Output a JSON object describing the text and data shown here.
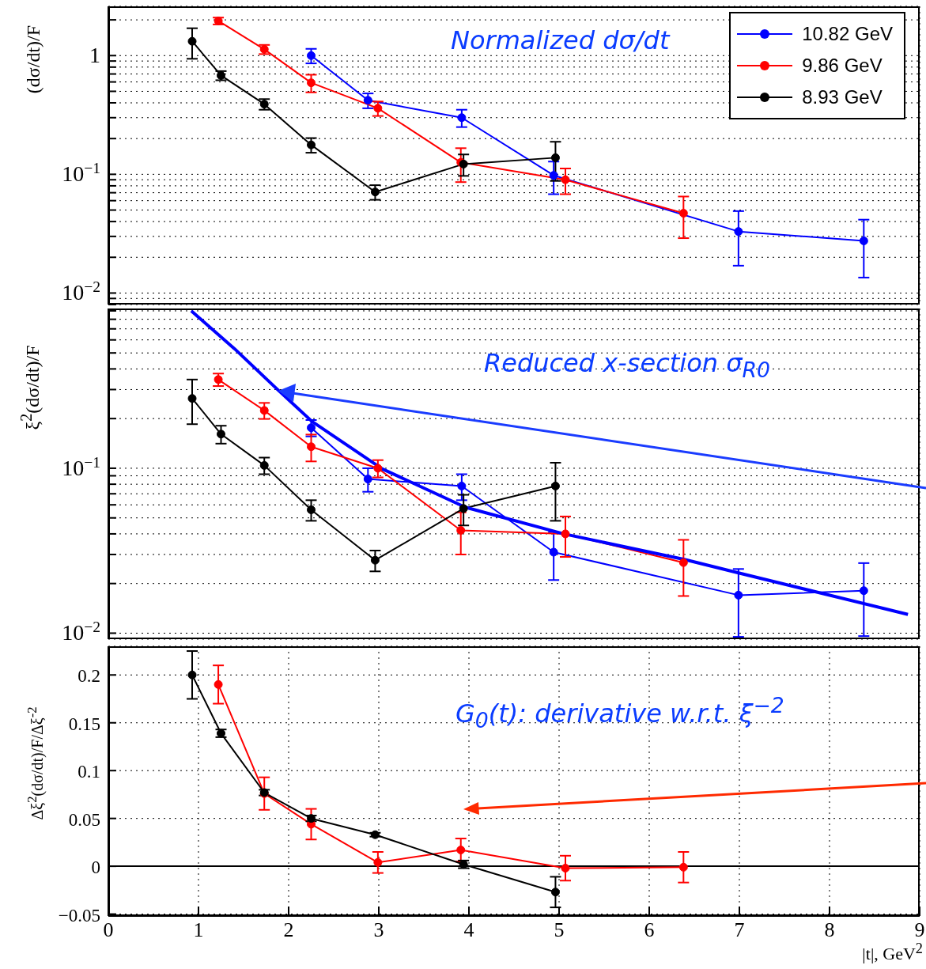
{
  "chart_data": [
    {
      "type": "line",
      "ylabel": "(dσ/dt)/F",
      "annotations": [
        "Normalized dσ/dt"
      ],
      "xlim": [
        0,
        9
      ],
      "xticks": [
        0,
        1,
        2,
        3,
        4,
        5,
        6,
        7,
        8,
        9
      ],
      "ylim": [
        0.008,
        2.6
      ],
      "log": true,
      "grid": true,
      "marker": "circle",
      "tick_labels": "y",
      "legend": "top right",
      "yticks": [
        {
          "value": 0.008,
          "label": null
        },
        {
          "value": 0.009,
          "label": null
        },
        {
          "value": 0.01,
          "label": "10$^{−2}$"
        },
        {
          "value": 0.02,
          "label": null
        },
        {
          "value": 0.03,
          "label": null
        },
        {
          "value": 0.04,
          "label": null
        },
        {
          "value": 0.05,
          "label": null
        },
        {
          "value": 0.06,
          "label": null
        },
        {
          "value": 0.07,
          "label": null
        },
        {
          "value": 0.08,
          "label": null
        },
        {
          "value": 0.09,
          "label": null
        },
        {
          "value": 0.1,
          "label": "10$^{−1}$"
        },
        {
          "value": 0.2,
          "label": null
        },
        {
          "value": 0.3,
          "label": null
        },
        {
          "value": 0.4,
          "label": null
        },
        {
          "value": 0.5,
          "label": null
        },
        {
          "value": 0.6,
          "label": null
        },
        {
          "value": 0.7,
          "label": null
        },
        {
          "value": 0.8,
          "label": null
        },
        {
          "value": 0.9,
          "label": null
        },
        1,
        {
          "value": 2,
          "label": null
        }
      ],
      "series": [
        {
          "name": "10.82 GeV",
          "color": "#0000ff",
          "x": [
            2.25,
            2.88,
            3.92,
            4.94,
            6.99,
            8.38
          ],
          "values": [
            1.0,
            0.42,
            0.3,
            0.098,
            0.033,
            0.0275
          ],
          "errors": [
            0.14,
            0.06,
            0.05,
            0.03,
            0.016,
            0.014
          ]
        },
        {
          "name": "9.86 GeV",
          "color": "#ff0000",
          "x": [
            1.22,
            1.73,
            2.25,
            2.99,
            3.91,
            5.07,
            6.38
          ],
          "values": [
            1.96,
            1.13,
            0.59,
            0.36,
            0.126,
            0.09,
            0.047
          ],
          "errors": [
            0.13,
            0.1,
            0.1,
            0.05,
            0.04,
            0.022,
            0.018
          ]
        },
        {
          "name": "8.93 GeV",
          "color": "#000000",
          "x": [
            0.93,
            1.25,
            1.73,
            2.25,
            2.96,
            3.94,
            4.96
          ],
          "values": [
            1.32,
            0.68,
            0.39,
            0.177,
            0.071,
            0.122,
            0.138
          ],
          "errors": [
            0.38,
            0.06,
            0.04,
            0.025,
            0.01,
            0.025,
            0.05
          ]
        }
      ]
    },
    {
      "type": "line",
      "ylabel": "ξ$^{2}$(dσ/dt)/F",
      "annotations": [
        "Reduced x-section σ$_{R0}$"
      ],
      "xlim": [
        0,
        9
      ],
      "xticks": [
        0,
        1,
        2,
        3,
        4,
        5,
        6,
        7,
        8,
        9
      ],
      "ylim": [
        0.0092,
        0.93
      ],
      "log": true,
      "grid": true,
      "marker": "circle",
      "tick_labels": "y",
      "yticks": [
        {
          "value": 0.01,
          "label": "10$^{−2}$"
        },
        {
          "value": 0.02,
          "label": null
        },
        {
          "value": 0.03,
          "label": null
        },
        {
          "value": 0.04,
          "label": null
        },
        {
          "value": 0.05,
          "label": null
        },
        {
          "value": 0.06,
          "label": null
        },
        {
          "value": 0.07,
          "label": null
        },
        {
          "value": 0.08,
          "label": null
        },
        {
          "value": 0.09,
          "label": null
        },
        {
          "value": 0.1,
          "label": "10$^{−1}$"
        },
        {
          "value": 0.2,
          "label": null
        },
        {
          "value": 0.3,
          "label": null
        },
        {
          "value": 0.4,
          "label": null
        },
        {
          "value": 0.5,
          "label": null
        },
        {
          "value": 0.6,
          "label": null
        },
        {
          "value": 0.7,
          "label": null
        },
        {
          "value": 0.8,
          "label": null
        },
        {
          "value": 0.9,
          "label": null
        }
      ],
      "series": [
        {
          "color": "#0000ff",
          "x": [
            2.25,
            2.88,
            3.92,
            4.94,
            6.99,
            8.38
          ],
          "values": [
            0.176,
            0.086,
            0.078,
            0.031,
            0.017,
            0.0181
          ],
          "errors": [
            0.02,
            0.014,
            0.014,
            0.01,
            0.0075,
            0.0085
          ]
        },
        {
          "color": "#ff0000",
          "x": [
            1.22,
            1.73,
            2.25,
            2.99,
            3.91,
            5.07,
            6.38
          ],
          "values": [
            0.345,
            0.224,
            0.135,
            0.1,
            0.042,
            0.04,
            0.0268
          ],
          "errors": [
            0.03,
            0.025,
            0.025,
            0.012,
            0.012,
            0.011,
            0.01
          ]
        },
        {
          "color": "#000000",
          "x": [
            0.93,
            1.25,
            1.73,
            2.25,
            2.96,
            3.94,
            4.96
          ],
          "values": [
            0.265,
            0.161,
            0.104,
            0.056,
            0.0277,
            0.057,
            0.078
          ],
          "errors": [
            0.08,
            0.02,
            0.012,
            0.008,
            0.004,
            0.012,
            0.03
          ]
        },
        {
          "type": "line",
          "color": "#0000ff",
          "marker": "none",
          "x": [
            0.92,
            1.4,
            1.86,
            2.26,
            3.04,
            3.96,
            5.05,
            6.39,
            6.99,
            8.87
          ],
          "values": [
            0.9,
            0.53,
            0.306,
            0.192,
            0.099,
            0.058,
            0.04,
            0.028,
            0.0232,
            0.013
          ]
        }
      ]
    },
    {
      "type": "line",
      "ylabel": "Δξ$^{2}$(dσ/dt)/F/Δξ$^{-2}$",
      "xlabel": "|t|, GeV$^{2}$",
      "annotations": [
        "G$_{0}$(t): derivative w.r.t. ξ$^{−2}$"
      ],
      "xlim": [
        0,
        9
      ],
      "xticks": [
        0,
        1,
        2,
        3,
        4,
        5,
        6,
        7,
        8,
        9
      ],
      "ylim": [
        -0.052,
        0.23
      ],
      "yticks": [
        {
          "value": -0.05,
          "label": "−0.05"
        },
        0,
        0.05,
        0.1,
        0.15,
        0.2
      ],
      "grid": true,
      "marker": "circle",
      "ref_lines": [
        {
          "axis": "y",
          "value": 0,
          "color": "#000000"
        }
      ],
      "series": [
        {
          "color": "#ff0000",
          "x": [
            1.22,
            1.73,
            2.25,
            2.99,
            3.91,
            5.07,
            6.38
          ],
          "values": [
            0.19,
            0.076,
            0.044,
            0.004,
            0.017,
            -0.002,
            -0.001
          ],
          "errors": [
            0.02,
            0.017,
            0.016,
            0.011,
            0.012,
            0.013,
            0.016
          ]
        },
        {
          "color": "#000000",
          "x": [
            0.93,
            1.25,
            1.73,
            2.25,
            2.96,
            3.94,
            4.96
          ],
          "values": [
            0.2,
            0.139,
            0.077,
            0.05,
            0.033,
            0.002,
            -0.027
          ],
          "errors": [
            0.025,
            0.004,
            0.003,
            0.003,
            0.002,
            0.004,
            0.016
          ]
        }
      ]
    }
  ]
}
